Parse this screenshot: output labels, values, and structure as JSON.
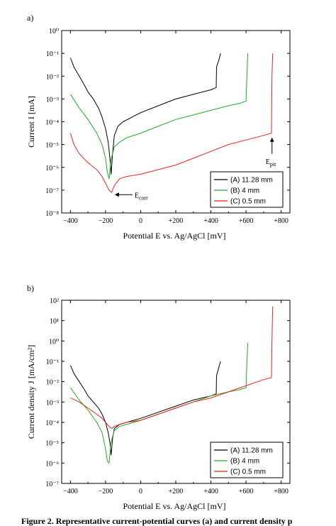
{
  "caption": "Figure 2. Representative current-potential curves (a) and current density p",
  "chart_data": [
    {
      "panel": "a)",
      "type": "line",
      "xlabel": "Potential E vs. Ag/AgCl [mV]",
      "ylabel": "Current I [mA]",
      "xlim": [
        -450,
        850
      ],
      "ylim_exp": [
        -8,
        0
      ],
      "y_scale": "log",
      "x_ticks": [
        -400,
        -200,
        0,
        200,
        400,
        600,
        800
      ],
      "x_tick_labels": [
        "−400",
        "−200",
        "0",
        "+200",
        "+400",
        "+600",
        "+800"
      ],
      "y_tick_exp": [
        0,
        -1,
        -2,
        -3,
        -4,
        -5,
        -6,
        -7,
        -8
      ],
      "legend_position": "bottom-right",
      "series": [
        {
          "name": "(A) 11.28 mm",
          "color": "#000000",
          "points": [
            [
              -400,
              -1.2
            ],
            [
              -380,
              -1.6
            ],
            [
              -350,
              -2.0
            ],
            [
              -320,
              -2.4
            ],
            [
              -300,
              -2.7
            ],
            [
              -270,
              -3.0
            ],
            [
              -240,
              -3.4
            ],
            [
              -220,
              -3.8
            ],
            [
              -200,
              -4.3
            ],
            [
              -185,
              -4.9
            ],
            [
              -175,
              -5.6
            ],
            [
              -168,
              -6.3
            ],
            [
              -160,
              -5.4
            ],
            [
              -150,
              -4.6
            ],
            [
              -130,
              -4.2
            ],
            [
              -100,
              -4.0
            ],
            [
              -50,
              -3.8
            ],
            [
              0,
              -3.6
            ],
            [
              100,
              -3.3
            ],
            [
              200,
              -3.0
            ],
            [
              300,
              -2.8
            ],
            [
              400,
              -2.6
            ],
            [
              430,
              -2.5
            ],
            [
              432,
              -1.6
            ],
            [
              445,
              -1.3
            ],
            [
              455,
              -1.0
            ]
          ]
        },
        {
          "name": "(B) 4 mm",
          "color": "#22aa22",
          "points": [
            [
              -400,
              -2.8
            ],
            [
              -350,
              -3.4
            ],
            [
              -300,
              -3.9
            ],
            [
              -250,
              -4.5
            ],
            [
              -220,
              -5.0
            ],
            [
              -200,
              -5.6
            ],
            [
              -190,
              -6.2
            ],
            [
              -180,
              -6.5
            ],
            [
              -170,
              -5.7
            ],
            [
              -150,
              -5.1
            ],
            [
              -120,
              -4.9
            ],
            [
              -80,
              -4.7
            ],
            [
              0,
              -4.5
            ],
            [
              100,
              -4.2
            ],
            [
              200,
              -3.9
            ],
            [
              300,
              -3.7
            ],
            [
              400,
              -3.5
            ],
            [
              500,
              -3.3
            ],
            [
              560,
              -3.2
            ],
            [
              600,
              -3.1
            ],
            [
              605,
              -2.0
            ],
            [
              610,
              -1.0
            ]
          ]
        },
        {
          "name": "(C) 0.5 mm",
          "color": "#ee2222",
          "points": [
            [
              -400,
              -4.5
            ],
            [
              -380,
              -5.0
            ],
            [
              -350,
              -5.4
            ],
            [
              -300,
              -5.8
            ],
            [
              -250,
              -6.1
            ],
            [
              -220,
              -6.4
            ],
            [
              -200,
              -6.7
            ],
            [
              -180,
              -7.0
            ],
            [
              -165,
              -7.1
            ],
            [
              -150,
              -6.8
            ],
            [
              -120,
              -6.5
            ],
            [
              -80,
              -6.4
            ],
            [
              0,
              -6.3
            ],
            [
              100,
              -6.1
            ],
            [
              200,
              -5.9
            ],
            [
              300,
              -5.6
            ],
            [
              400,
              -5.3
            ],
            [
              500,
              -5.0
            ],
            [
              600,
              -4.8
            ],
            [
              700,
              -4.6
            ],
            [
              745,
              -4.5
            ],
            [
              748,
              -2.0
            ],
            [
              752,
              -1.0
            ]
          ]
        }
      ],
      "annotations": [
        {
          "label": "E",
          "sub": "corr",
          "x": -160,
          "y_exp": -7.2
        },
        {
          "label": "E",
          "sub": "pit",
          "x": 748,
          "y_exp": -4.6
        }
      ]
    },
    {
      "panel": "b)",
      "type": "line",
      "xlabel": "Potential E vs. Ag/AgCl [mV]",
      "ylabel": "Current density J [mA/cm²]",
      "xlim": [
        -450,
        850
      ],
      "ylim_exp": [
        -7,
        2
      ],
      "y_scale": "log",
      "x_ticks": [
        -400,
        -200,
        0,
        200,
        400,
        600,
        800
      ],
      "x_tick_labels": [
        "−400",
        "−200",
        "0",
        "+200",
        "+400",
        "+600",
        "+800"
      ],
      "y_tick_exp": [
        2,
        1,
        0,
        -1,
        -2,
        -3,
        -4,
        -5,
        -6,
        -7
      ],
      "legend_position": "bottom-right",
      "series": [
        {
          "name": "(A) 11.28 mm",
          "color": "#000000",
          "points": [
            [
              -400,
              -1.2
            ],
            [
              -380,
              -1.6
            ],
            [
              -350,
              -2.0
            ],
            [
              -320,
              -2.4
            ],
            [
              -300,
              -2.7
            ],
            [
              -270,
              -3.0
            ],
            [
              -240,
              -3.3
            ],
            [
              -220,
              -3.6
            ],
            [
              -200,
              -4.0
            ],
            [
              -185,
              -4.5
            ],
            [
              -175,
              -5.0
            ],
            [
              -168,
              -5.6
            ],
            [
              -160,
              -4.8
            ],
            [
              -150,
              -4.3
            ],
            [
              -120,
              -4.1
            ],
            [
              -80,
              -4.0
            ],
            [
              0,
              -3.8
            ],
            [
              100,
              -3.5
            ],
            [
              200,
              -3.2
            ],
            [
              300,
              -2.9
            ],
            [
              400,
              -2.7
            ],
            [
              430,
              -2.6
            ],
            [
              432,
              -1.7
            ],
            [
              445,
              -1.3
            ],
            [
              455,
              -1.0
            ]
          ]
        },
        {
          "name": "(B) 4 mm",
          "color": "#22aa22",
          "points": [
            [
              -400,
              -2.3
            ],
            [
              -350,
              -2.9
            ],
            [
              -300,
              -3.4
            ],
            [
              -250,
              -4.0
            ],
            [
              -220,
              -4.5
            ],
            [
              -200,
              -5.3
            ],
            [
              -190,
              -5.9
            ],
            [
              -180,
              -6.0
            ],
            [
              -170,
              -5.0
            ],
            [
              -150,
              -4.4
            ],
            [
              -120,
              -4.2
            ],
            [
              -80,
              -4.1
            ],
            [
              0,
              -3.9
            ],
            [
              100,
              -3.6
            ],
            [
              200,
              -3.3
            ],
            [
              300,
              -3.0
            ],
            [
              400,
              -2.7
            ],
            [
              500,
              -2.5
            ],
            [
              560,
              -2.4
            ],
            [
              600,
              -2.3
            ],
            [
              605,
              -1.0
            ],
            [
              610,
              -0.1
            ]
          ]
        },
        {
          "name": "(C) 0.5 mm",
          "color": "#ee2222",
          "points": [
            [
              -400,
              -2.8
            ],
            [
              -350,
              -3.0
            ],
            [
              -300,
              -3.3
            ],
            [
              -250,
              -3.6
            ],
            [
              -220,
              -3.8
            ],
            [
              -200,
              -4.0
            ],
            [
              -180,
              -4.2
            ],
            [
              -165,
              -4.3
            ],
            [
              -150,
              -4.2
            ],
            [
              -120,
              -4.1
            ],
            [
              -80,
              -4.0
            ],
            [
              0,
              -3.9
            ],
            [
              100,
              -3.6
            ],
            [
              200,
              -3.3
            ],
            [
              300,
              -3.0
            ],
            [
              400,
              -2.8
            ],
            [
              500,
              -2.5
            ],
            [
              600,
              -2.2
            ],
            [
              700,
              -1.9
            ],
            [
              745,
              -1.8
            ],
            [
              748,
              0.0
            ],
            [
              752,
              1.7
            ]
          ]
        }
      ]
    }
  ]
}
